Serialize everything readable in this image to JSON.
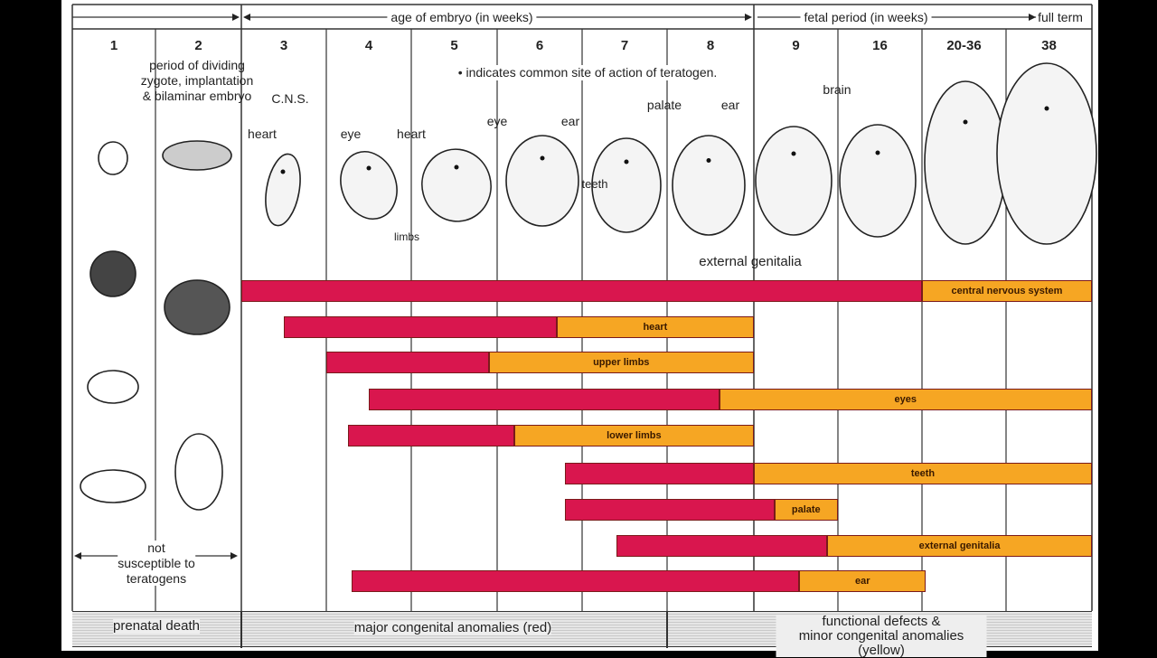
{
  "header": {
    "age_of_embryo": "age of embryo (in weeks)",
    "fetal_period": "fetal period (in weeks)",
    "full_term": "full term"
  },
  "columns": [
    "1",
    "2",
    "3",
    "4",
    "5",
    "6",
    "7",
    "8",
    "9",
    "16",
    "20-36",
    "38"
  ],
  "notes": {
    "early_period": [
      "period of dividing",
      "zygote, implantation",
      "& bilaminar embryo"
    ],
    "indicator": "• indicates common site of action of teratogen.",
    "not_susceptible": [
      "not",
      "susceptible to",
      "teratogens"
    ]
  },
  "site_labels": {
    "cns": "C.N.S.",
    "heart_3": "heart",
    "eye": "eye",
    "heart_4": "heart",
    "eye_5": "eye",
    "ear_6": "ear",
    "teeth": "teeth",
    "limbs": "limbs",
    "palate": "palate",
    "ear_8": "ear",
    "brain": "brain",
    "external_genitalia": "external genitalia"
  },
  "colors": {
    "major": "#d9164e",
    "minor": "#f6a623"
  },
  "chart_data": {
    "type": "bar",
    "orientation": "horizontal",
    "x_axis_weeks": [
      3,
      4,
      5,
      6,
      7,
      8,
      9,
      16,
      20,
      36,
      38
    ],
    "series": [
      {
        "name": "major congenital anomalies (red)"
      },
      {
        "name": "functional defects & minor congenital anomalies (yellow)"
      }
    ],
    "bars": [
      {
        "label": "central nervous system",
        "red": [
          3,
          20
        ],
        "yellow": [
          20,
          38
        ]
      },
      {
        "label": "heart",
        "red": [
          3.5,
          6.7
        ],
        "yellow": [
          6.7,
          9
        ]
      },
      {
        "label": "upper limbs",
        "red": [
          4,
          5.9
        ],
        "yellow": [
          5.9,
          9
        ]
      },
      {
        "label": "eyes",
        "red": [
          4.5,
          8.6
        ],
        "yellow": [
          8.6,
          38
        ]
      },
      {
        "label": "lower limbs",
        "red": [
          4.25,
          6.2
        ],
        "yellow": [
          6.2,
          9
        ]
      },
      {
        "label": "teeth",
        "red": [
          6.8,
          9
        ],
        "yellow": [
          9,
          38
        ]
      },
      {
        "label": "palate",
        "red": [
          6.8,
          10.7
        ],
        "yellow": [
          10.7,
          16
        ]
      },
      {
        "label": "external genitalia",
        "red": [
          7.4,
          15.1
        ],
        "yellow": [
          15.1,
          38
        ]
      },
      {
        "label": "ear",
        "red": [
          4.3,
          12.8
        ],
        "yellow": [
          12.8,
          20.7
        ]
      }
    ]
  },
  "footer": {
    "prenatal_death": "prenatal death",
    "major": "major congenital anomalies (red)",
    "minor_1": "functional defects &",
    "minor_2": "minor congenital anomalies (yellow)"
  }
}
